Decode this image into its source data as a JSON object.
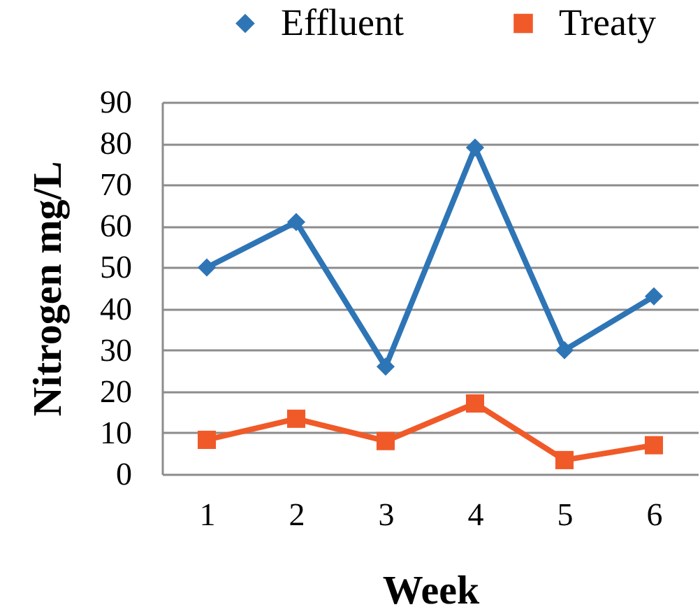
{
  "chart_data": {
    "type": "line",
    "xlabel": "Week",
    "ylabel": "Nitrogen mg/L",
    "categories": [
      "1",
      "2",
      "3",
      "4",
      "5",
      "6"
    ],
    "series": [
      {
        "name": "Effluent",
        "color": "#2e75b6",
        "marker": "diamond",
        "line_style": "solid",
        "values": [
          50,
          61,
          26,
          79,
          30,
          43
        ]
      },
      {
        "name": "Treaty",
        "color": "#f05a28",
        "marker": "square",
        "line_style": "solid",
        "values": [
          8.3,
          13.4,
          8,
          17.1,
          3.4,
          7
        ]
      }
    ],
    "ylim": [
      0,
      90
    ],
    "yticks": [
      0,
      10,
      20,
      30,
      40,
      50,
      60,
      70,
      80,
      90
    ],
    "grid": "y",
    "legend": "top"
  }
}
